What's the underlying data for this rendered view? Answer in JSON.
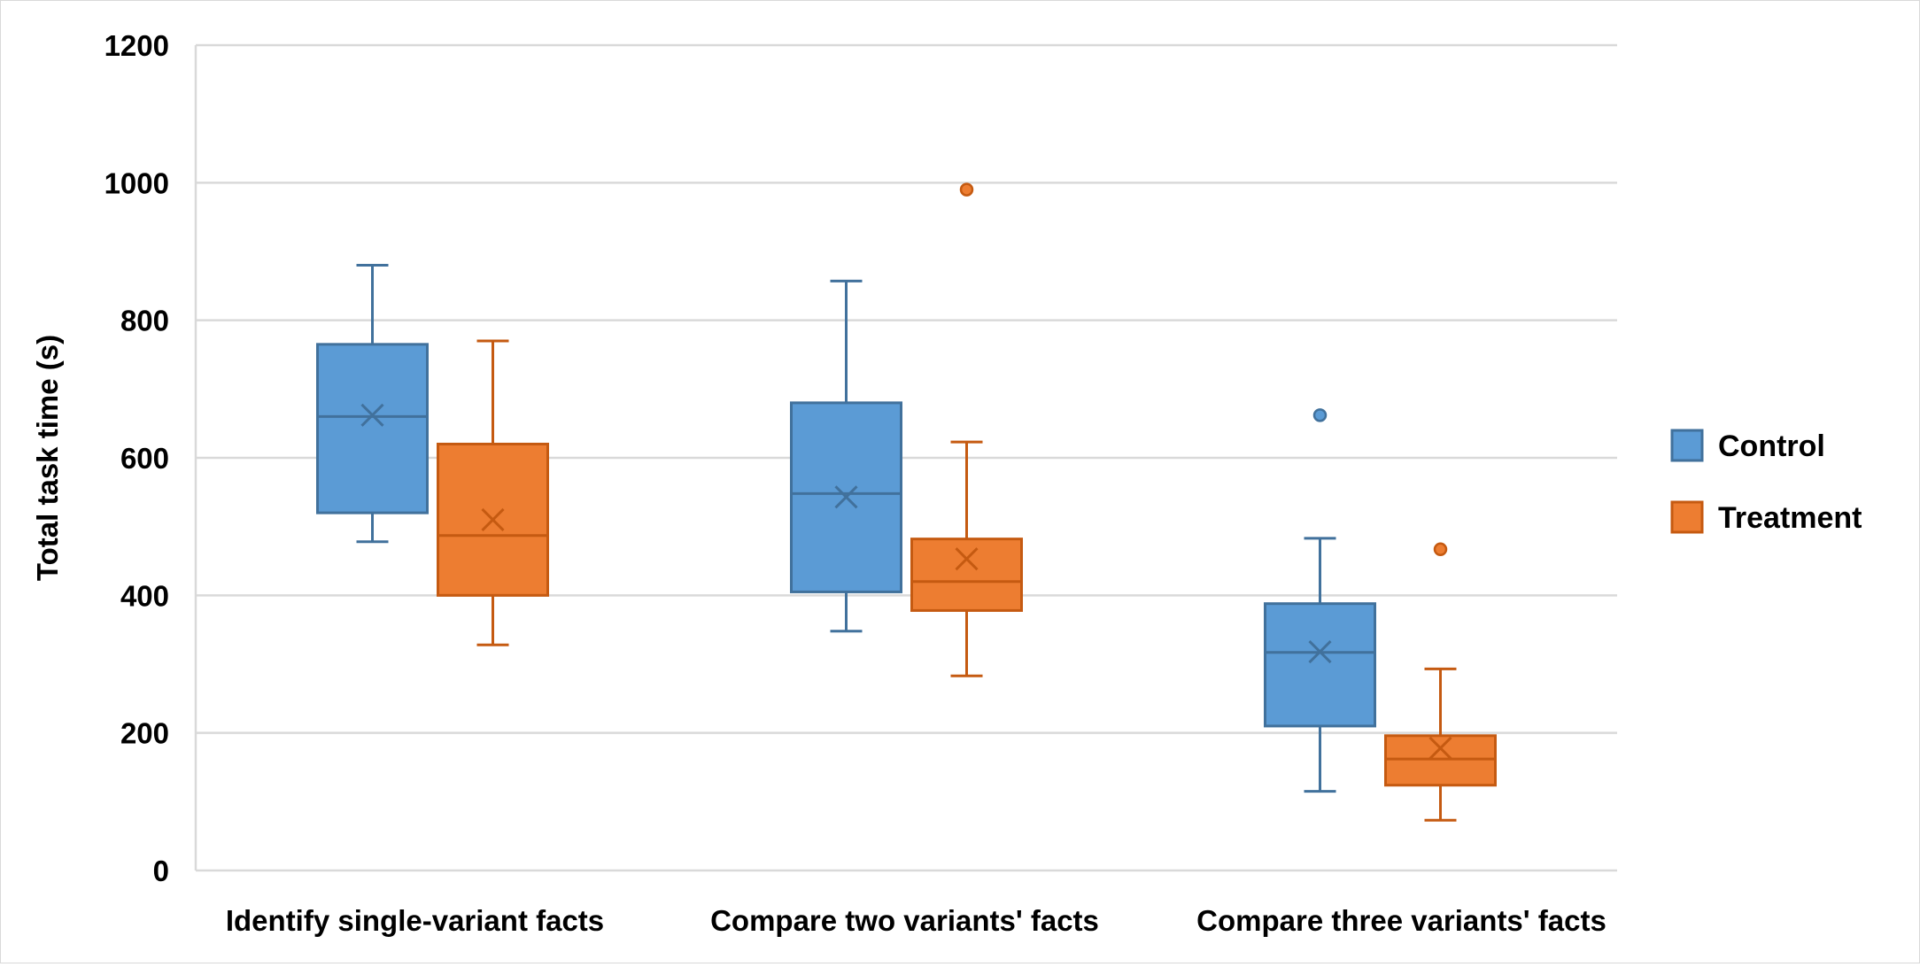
{
  "chart_data": {
    "type": "box",
    "title": "",
    "xlabel": "",
    "ylabel": "Total task time (s)",
    "ylim": [
      0,
      1200
    ],
    "yticks": [
      0,
      200,
      400,
      600,
      800,
      1000,
      1200
    ],
    "ytick_labels": [
      "0",
      "200",
      "400",
      "600",
      "800",
      "1000",
      "1200"
    ],
    "grid": true,
    "legend_position": "right",
    "categories": [
      "Identify single-variant facts",
      "Compare two variants' facts",
      "Compare three variants' facts"
    ],
    "series": [
      {
        "name": "Control",
        "fill": "#5b9bd5",
        "stroke": "#41719c",
        "boxes": [
          {
            "min": 478,
            "q1": 520,
            "median": 660,
            "q3": 765,
            "max": 880,
            "mean": 662,
            "outliers": []
          },
          {
            "min": 348,
            "q1": 405,
            "median": 548,
            "q3": 680,
            "max": 857,
            "mean": 543,
            "outliers": []
          },
          {
            "min": 115,
            "q1": 210,
            "median": 317,
            "q3": 388,
            "max": 483,
            "mean": 318,
            "outliers": [
              662
            ]
          }
        ]
      },
      {
        "name": "Treatment",
        "fill": "#ed7d31",
        "stroke": "#c55a11",
        "boxes": [
          {
            "min": 328,
            "q1": 400,
            "median": 487,
            "q3": 620,
            "max": 770,
            "mean": 510,
            "outliers": []
          },
          {
            "min": 283,
            "q1": 378,
            "median": 420,
            "q3": 482,
            "max": 623,
            "mean": 453,
            "outliers": [
              990
            ]
          },
          {
            "min": 73,
            "q1": 124,
            "median": 162,
            "q3": 196,
            "max": 293,
            "mean": 178,
            "outliers": [
              467
            ]
          }
        ]
      }
    ]
  },
  "colors": {
    "grid": "#d9d9d9",
    "background": "#ffffff",
    "text": "#000000"
  }
}
